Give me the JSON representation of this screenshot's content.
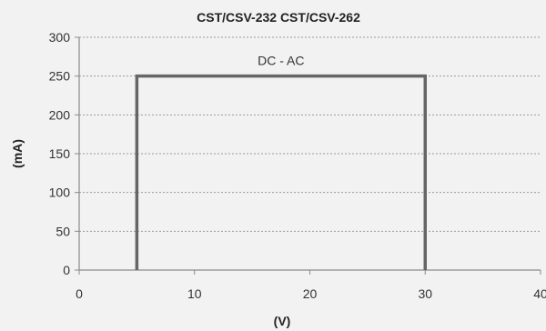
{
  "chart_data": {
    "type": "line",
    "title": "CST/CSV-232 CST/CSV-262",
    "xlabel": "(V)",
    "ylabel": "(mA)",
    "xlim": [
      0,
      40
    ],
    "ylim": [
      0,
      300
    ],
    "x_ticks": [
      0,
      10,
      20,
      30,
      40
    ],
    "y_ticks": [
      0,
      50,
      100,
      150,
      200,
      250,
      300
    ],
    "grid": {
      "horizontal": true,
      "style": "dotted"
    },
    "series": [
      {
        "name": "DC - AC",
        "x": [
          5,
          5,
          30,
          30
        ],
        "y": [
          0,
          250,
          250,
          0
        ]
      }
    ],
    "colors": {
      "line": "#666666",
      "grid": "#9a9a9a",
      "axis": "#8a8a8a",
      "background": "#f2f2f2"
    }
  }
}
